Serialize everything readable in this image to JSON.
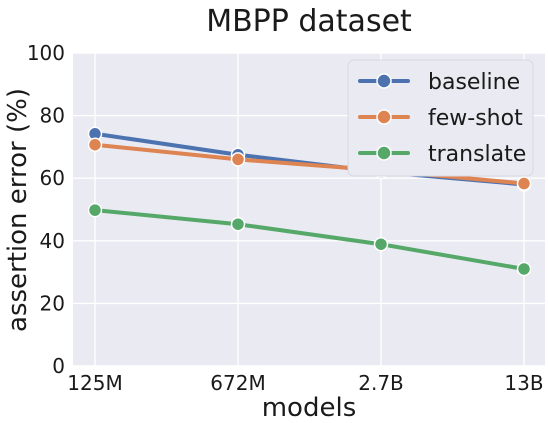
{
  "chart_data": {
    "type": "line",
    "title": "MBPP dataset",
    "xlabel": "models",
    "ylabel": "assertion error (%)",
    "categories": [
      "125M",
      "672M",
      "2.7B",
      "13B"
    ],
    "ylim": [
      0,
      100
    ],
    "yticks": [
      0,
      20,
      40,
      60,
      80,
      100
    ],
    "grid": true,
    "legend_position": "top-right",
    "series": [
      {
        "name": "baseline",
        "color": "#4c72b0",
        "values": [
          74.2,
          67.5,
          62.0,
          58.0
        ]
      },
      {
        "name": "few-shot",
        "color": "#dd8452",
        "values": [
          70.7,
          66.0,
          62.5,
          58.3
        ]
      },
      {
        "name": "translate",
        "color": "#55a868",
        "values": [
          49.8,
          45.3,
          38.9,
          31.0
        ]
      }
    ]
  }
}
